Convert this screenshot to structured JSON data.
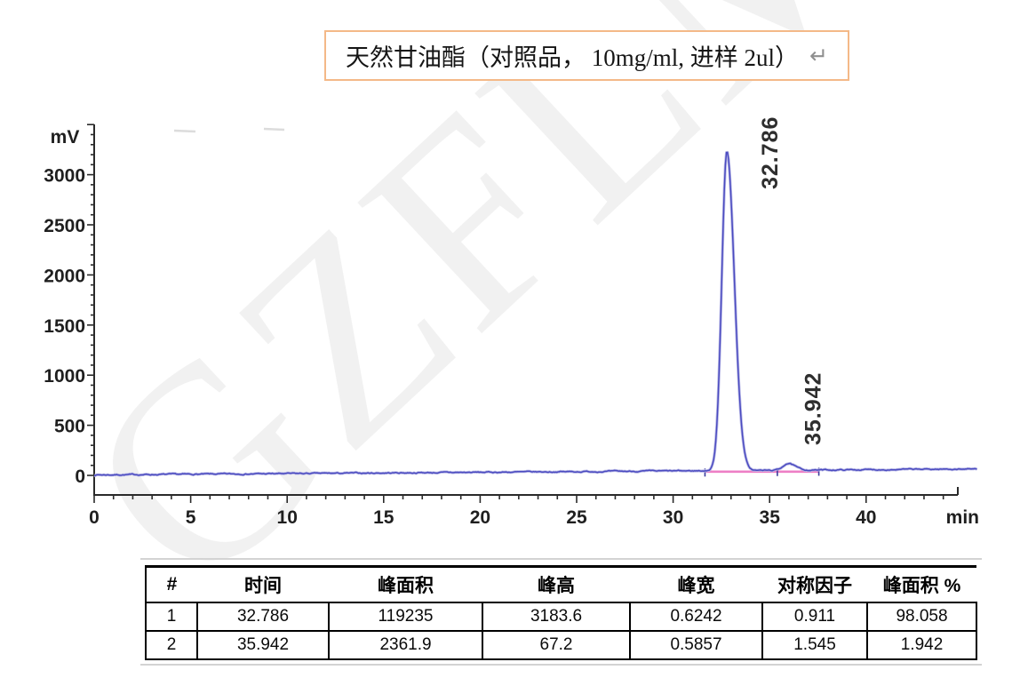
{
  "title": {
    "text": "天然甘油酯（对照品， 10mg/ml, 进样 2ul）",
    "return_mark": "↵"
  },
  "watermark": "GZFLM",
  "chart_data": {
    "type": "line",
    "kind": "hplc-chromatogram",
    "x_axis": {
      "label": "min",
      "ticks": [
        0,
        5,
        10,
        15,
        20,
        25,
        30,
        35,
        40
      ],
      "minor_step": 1,
      "range": [
        0,
        44.7
      ]
    },
    "y_axis": {
      "label": "mV",
      "ticks": [
        0,
        500,
        1000,
        1500,
        2000,
        2500,
        3000
      ],
      "minor_step": 100,
      "range": [
        0,
        3500
      ]
    },
    "baseline_mV": 5,
    "peaks": [
      {
        "label": "32.786",
        "rt_min": 32.786,
        "height_mV": 3183.6,
        "area": 119235,
        "width_min": 0.6242,
        "symmetry": 0.911,
        "area_percent": 98.058
      },
      {
        "label": "35.942",
        "rt_min": 35.942,
        "height_mV": 67.2,
        "area": 2361.9,
        "width_min": 0.5857,
        "symmetry": 1.545,
        "area_percent": 1.942
      }
    ],
    "integration": {
      "segments": [
        [
          31.65,
          37.55
        ]
      ],
      "marks": [
        31.65,
        35.4,
        37.55
      ],
      "color": "#ee7fc6"
    },
    "trace_color": "#4a4ac0",
    "trace_halo_color": "#b9b9e6",
    "axis_color": "#2a2a2a",
    "label_color": "#1f1f1f"
  },
  "table": {
    "headers": [
      "#",
      "时间",
      "峰面积",
      "峰高",
      "峰宽",
      "对称因子",
      "峰面积 %"
    ],
    "rows": [
      [
        "1",
        "32.786",
        "119235",
        "3183.6",
        "0.6242",
        "0.911",
        "98.058"
      ],
      [
        "2",
        "35.942",
        "2361.9",
        "67.2",
        "0.5857",
        "1.545",
        "1.942"
      ]
    ]
  }
}
